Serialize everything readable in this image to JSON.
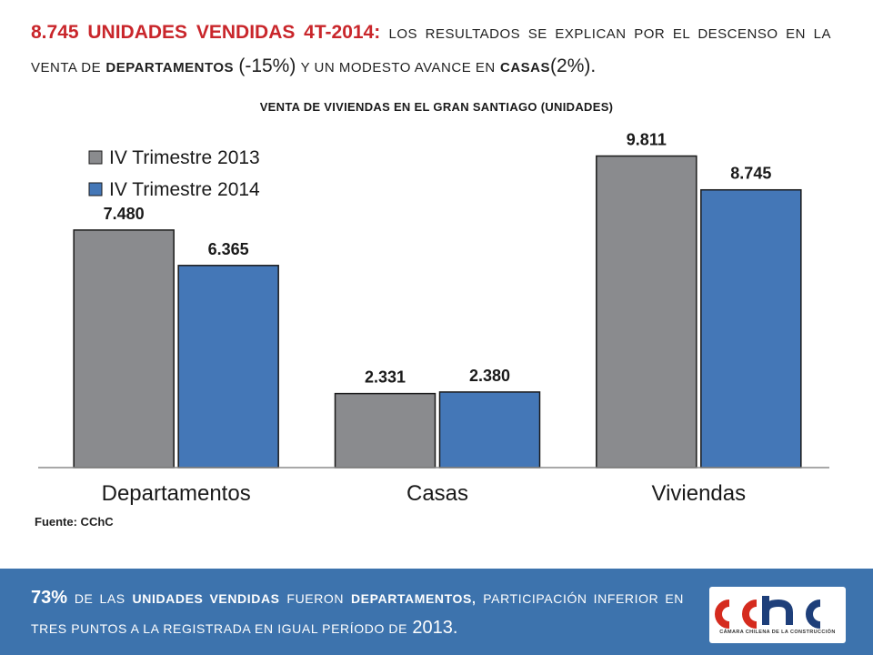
{
  "headline": {
    "units": "8.745 UNIDADES VENDIDAS 4T-2014:",
    "text_1": "LOS RESULTADOS SE EXPLICAN POR EL DESCENSO EN LA VENTA DE",
    "text_bold_1": "DEPARTAMENTOS",
    "pct_1": "(-15%)",
    "text_2": "Y UN MODESTO AVANCE EN",
    "text_bold_2": "CASAS",
    "pct_2": "(2%)",
    "end": "."
  },
  "source": "Fuente: CChC",
  "footer": {
    "pct": "73%",
    "text_1": "DE LAS",
    "bold_1": "UNIDADES VENDIDAS",
    "text_2": "FUERON",
    "bold_2": "DEPARTAMENTOS,",
    "text_3": "PARTICIPACIÓN INFERIOR EN TRES PUNTOS A LA REGISTRADA EN IGUAL PERÍODO DE",
    "year": "2013",
    "end": "."
  },
  "logo": {
    "caption": "CÁMARA CHILENA DE LA CONSTRUCCIÓN",
    "colors": {
      "red": "#d52b1e",
      "blue": "#1e3f7a"
    }
  },
  "chart_data": {
    "type": "bar",
    "title": "VENTA DE VIVIENDAS EN EL GRAN SANTIAGO (UNIDADES)",
    "categories": [
      "Departamentos",
      "Casas",
      "Viviendas"
    ],
    "series": [
      {
        "name": "IV Trimestre 2013",
        "values": [
          7480,
          2331,
          9811
        ],
        "labels": [
          "7.480",
          "2.331",
          "9.811"
        ],
        "color": "#8a8b8e"
      },
      {
        "name": "IV Trimestre 2014",
        "values": [
          6365,
          2380,
          8745
        ],
        "labels": [
          "6.365",
          "2.380",
          "8.745"
        ],
        "color": "#4477b7"
      }
    ],
    "ylim": [
      0,
      11000
    ],
    "grid": false,
    "legend": "top-left"
  }
}
